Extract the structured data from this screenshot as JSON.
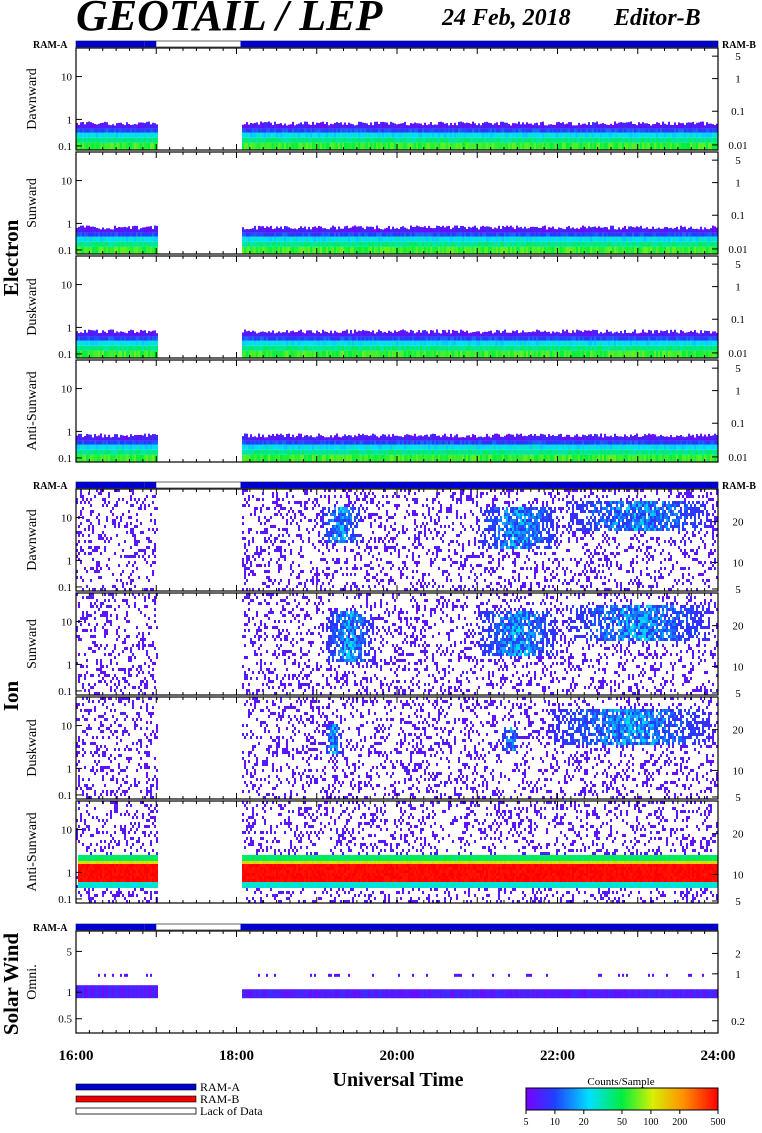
{
  "header": {
    "title": "GEOTAIL / LEP",
    "date": "24 Feb, 2018",
    "editor": "Editor-B"
  },
  "sections": {
    "electron": "Electron",
    "ion": "Ion",
    "solar_wind": "Solar Wind"
  },
  "ram_labels": {
    "a": "RAM-A",
    "b": "RAM-B"
  },
  "legend": {
    "ram_a": "RAM-A",
    "ram_b": "RAM-B",
    "lack": "Lack of Data",
    "ram_a_color": "#0000cc",
    "ram_b_color": "#ee0000"
  },
  "colorbar": {
    "title": "Counts/Sample",
    "ticks": [
      "5",
      "10",
      "20",
      "50",
      "100",
      "200",
      "500"
    ]
  },
  "chart_data": {
    "type": "heatmap",
    "xlabel": "Universal Time",
    "x_ticks": [
      "16:00",
      "18:00",
      "20:00",
      "22:00",
      "24:00"
    ],
    "x_range_hours": [
      16,
      24
    ],
    "data_gap_hours": [
      17.0,
      18.05
    ],
    "ram_a_segments_hours": [
      [
        16.0,
        16.85
      ],
      [
        16.85,
        17.0
      ],
      [
        18.05,
        24.0
      ]
    ],
    "panels": [
      {
        "group": "electron",
        "ylabel": "Dawnward",
        "left_ticks": [
          "10",
          "1",
          "0.1"
        ],
        "right_ticks": [
          "5",
          "1",
          "0.1",
          "0.01"
        ],
        "pattern": "electron"
      },
      {
        "group": "electron",
        "ylabel": "Sunward",
        "left_ticks": [
          "10",
          "1",
          "0.1"
        ],
        "right_ticks": [
          "5",
          "1",
          "0.1",
          "0.01"
        ],
        "pattern": "electron"
      },
      {
        "group": "electron",
        "ylabel": "Duskward",
        "left_ticks": [
          "10",
          "1",
          "0.1"
        ],
        "right_ticks": [
          "5",
          "1",
          "0.1",
          "0.01"
        ],
        "pattern": "electron"
      },
      {
        "group": "electron",
        "ylabel": "Anti-Sunward",
        "left_ticks": [
          "10",
          "1",
          "0.1"
        ],
        "right_ticks": [
          "5",
          "1",
          "0.1",
          "0.01"
        ],
        "pattern": "electron"
      },
      {
        "group": "ion",
        "ylabel": "Dawnward",
        "left_ticks": [
          "10",
          "1",
          "0.1"
        ],
        "right_ticks": [
          "20",
          "10",
          "5"
        ],
        "pattern": "ion_dawn"
      },
      {
        "group": "ion",
        "ylabel": "Sunward",
        "left_ticks": [
          "10",
          "1",
          "0.1"
        ],
        "right_ticks": [
          "20",
          "10",
          "5"
        ],
        "pattern": "ion_sun"
      },
      {
        "group": "ion",
        "ylabel": "Duskward",
        "left_ticks": [
          "10",
          "1",
          "0.1"
        ],
        "right_ticks": [
          "20",
          "10",
          "5"
        ],
        "pattern": "ion_dusk"
      },
      {
        "group": "ion",
        "ylabel": "Anti-Sunward",
        "left_ticks": [
          "10",
          "1",
          "0.1"
        ],
        "right_ticks": [
          "20",
          "10",
          "5"
        ],
        "pattern": "ion_anti"
      },
      {
        "group": "solar_wind",
        "ylabel": "Omni.",
        "left_ticks": [
          "5",
          "1",
          "0.5"
        ],
        "right_ticks": [
          "2",
          "1",
          "0.2"
        ],
        "pattern": "solar"
      }
    ]
  }
}
